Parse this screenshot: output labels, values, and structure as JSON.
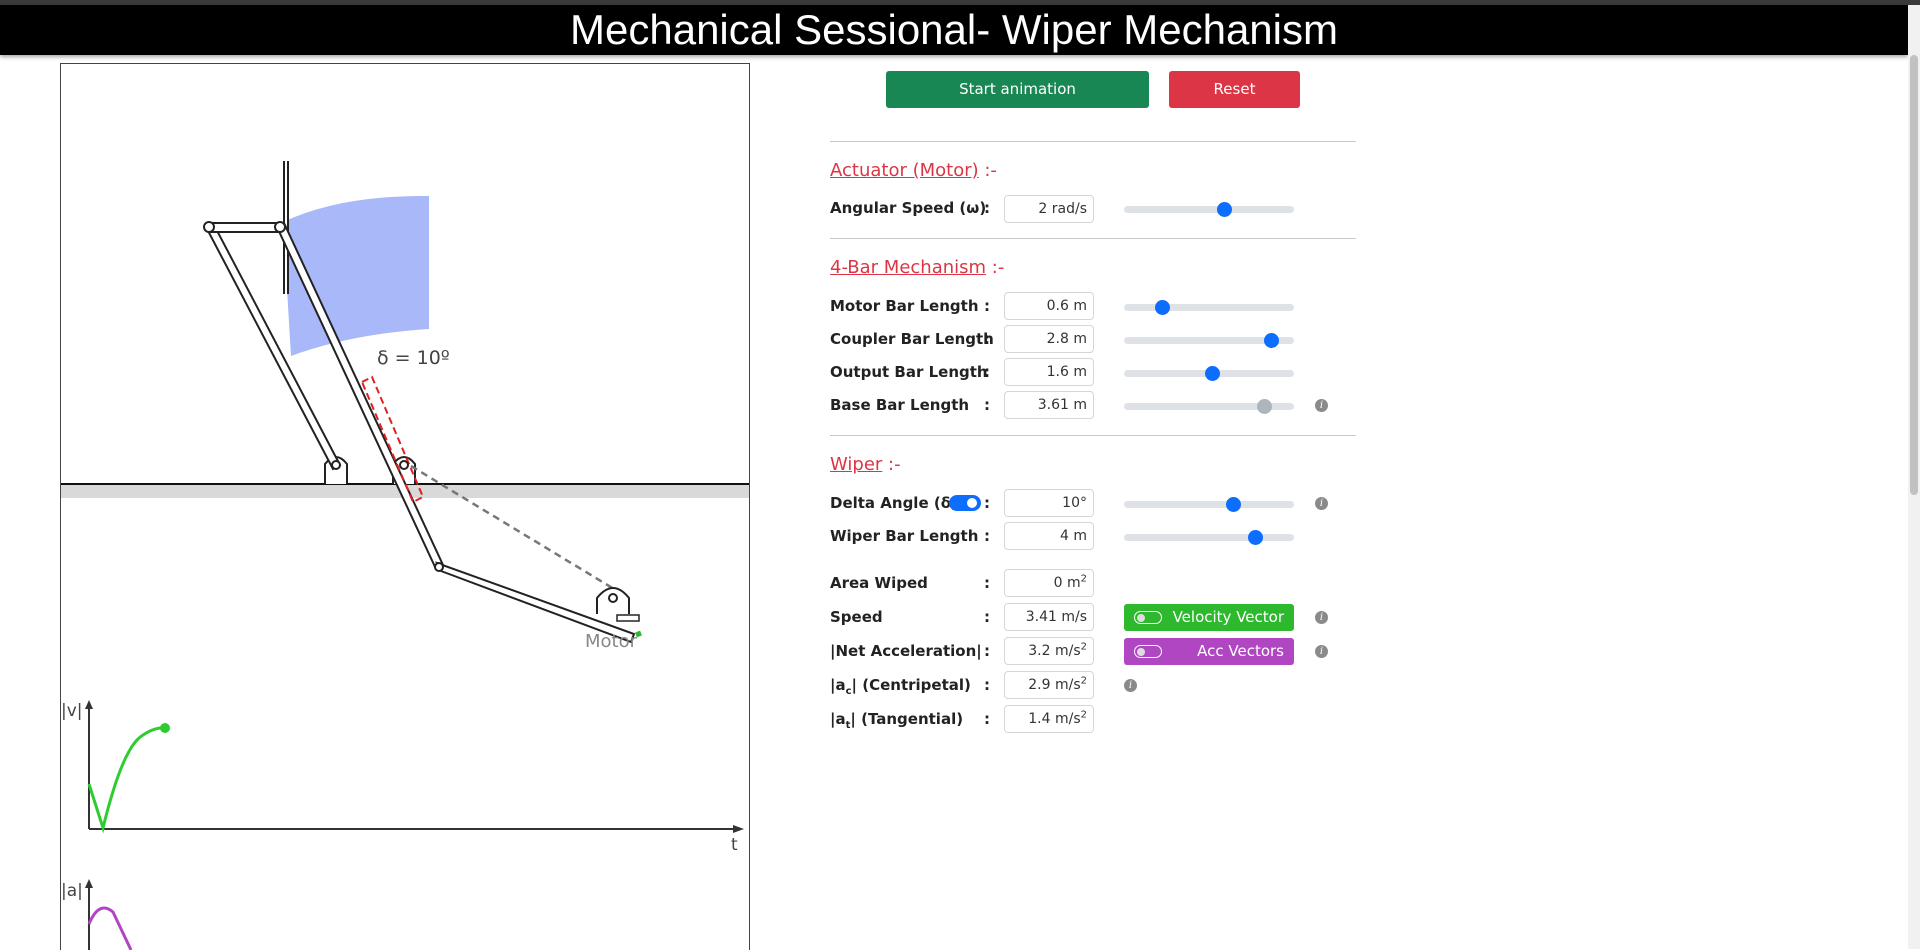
{
  "header": {
    "title": "Mechanical Sessional- Wiper Mechanism"
  },
  "controls": {
    "start_label": "Start animation",
    "reset_label": "Reset"
  },
  "actuator": {
    "title": "Actuator (Motor)",
    "suffix": " :-",
    "angular_speed": {
      "label": "Angular Speed (ω)",
      "value": "2 rad/s",
      "slider_fraction": 0.6
    }
  },
  "fourbar": {
    "title": "4-Bar Mechanism",
    "suffix": " :-",
    "motor_bar": {
      "label": "Motor Bar Length",
      "value": "0.6 m",
      "slider_fraction": 0.2
    },
    "coupler_bar": {
      "label": "Coupler Bar Length",
      "value": "2.8 m",
      "slider_fraction": 0.9
    },
    "output_bar": {
      "label": "Output Bar Length",
      "value": "1.6 m",
      "slider_fraction": 0.52
    },
    "base_bar": {
      "label": "Base Bar Length",
      "value": "3.61 m",
      "slider_fraction": 0.86
    }
  },
  "wiper": {
    "title": "Wiper",
    "suffix": " :-",
    "delta": {
      "label": "Delta Angle (δ)",
      "value": "10°",
      "slider_fraction": 0.66,
      "enabled": true
    },
    "wiper_bar": {
      "label": "Wiper Bar Length",
      "value": "4 m",
      "slider_fraction": 0.8
    },
    "area": {
      "label": "Area Wiped",
      "value": "0 m",
      "unit_sup": "2"
    },
    "speed": {
      "label": "Speed",
      "value": "3.41 m/s",
      "toggle_label": "Velocity Vector"
    },
    "net_acc": {
      "label": "|Net Acceleration|",
      "value": "3.2 m/s",
      "unit_sup": "2",
      "toggle_label": "Acc Vectors"
    },
    "centripetal": {
      "label_pre": "|a",
      "label_sub": "c",
      "label_post": "| (Centripetal)",
      "value": "2.9 m/s",
      "unit_sup": "2"
    },
    "tangential": {
      "label_pre": "|a",
      "label_sub": "t",
      "label_post": "| (Tangential)",
      "value": "1.4 m/s",
      "unit_sup": "2"
    }
  },
  "colon": ":",
  "info_glyph": "i",
  "canvas": {
    "delta_label": "δ = 10º",
    "motor_label": "Motor",
    "v_axis": "|v|",
    "a_axis": "|a|",
    "t_axis": "t"
  },
  "colors": {
    "start": "#198754",
    "reset": "#dc3545",
    "section": "#dc3545",
    "slider": "#0d6efd",
    "velocity": "#2eb82e",
    "acceleration": "#b146c2"
  }
}
